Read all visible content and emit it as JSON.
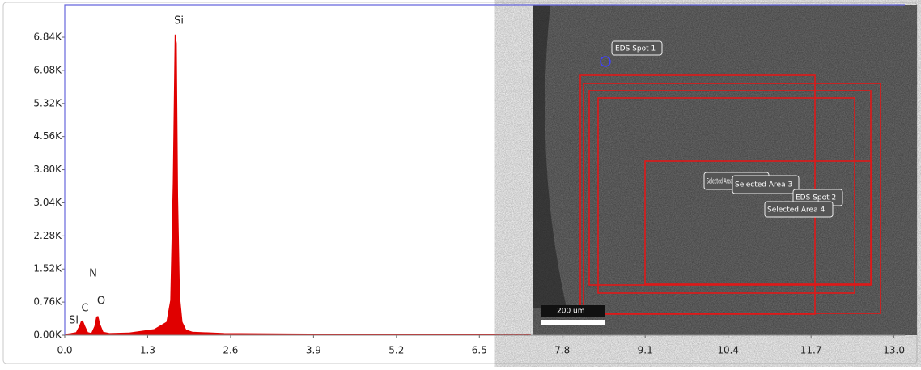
{
  "chart_data": {
    "type": "area",
    "color": "#e00000",
    "xlim": [
      0,
      13.17
    ],
    "ylim": [
      0,
      7584
    ],
    "xticks": [
      {
        "value": 0,
        "label": "0.0"
      },
      1.3,
      2.6,
      3.9,
      5.2,
      6.5,
      7.8,
      9.1,
      10.4,
      11.7,
      {
        "value": 13,
        "label": "13.0"
      }
    ],
    "yticks": [
      {
        "value": 0,
        "label": "0.00K"
      },
      {
        "value": 760,
        "label": "0.76K"
      },
      {
        "value": 1520,
        "label": "1.52K"
      },
      {
        "value": 2280,
        "label": "2.28K"
      },
      {
        "value": 3040,
        "label": "3.04K"
      },
      {
        "value": 3800,
        "label": "3.80K"
      },
      {
        "value": 4560,
        "label": "4.56K"
      },
      {
        "value": 5320,
        "label": "5.32K"
      },
      {
        "value": 6080,
        "label": "6.08K"
      },
      {
        "value": 6840,
        "label": "6.84K"
      }
    ],
    "x": [
      0.0,
      0.1,
      0.18,
      0.23,
      0.26,
      0.28,
      0.31,
      0.36,
      0.42,
      0.47,
      0.5,
      0.52,
      0.55,
      0.6,
      0.7,
      1.0,
      1.4,
      1.6,
      1.66,
      1.7,
      1.73,
      1.75,
      1.77,
      1.8,
      1.84,
      1.9,
      2.0,
      2.5,
      3.5,
      5.0,
      7.3
    ],
    "values": [
      20,
      40,
      60,
      200,
      320,
      330,
      220,
      60,
      40,
      200,
      420,
      430,
      250,
      70,
      40,
      50,
      130,
      300,
      800,
      3500,
      6900,
      6700,
      3200,
      900,
      300,
      120,
      70,
      40,
      30,
      25,
      20
    ],
    "annotations": [
      "Si",
      "Si",
      "C",
      "N",
      "O"
    ]
  },
  "image_overlay": {
    "labels": [
      "EDS Spot 1",
      "Selected Area",
      "Selected Area 3",
      "EDS Spot 2",
      "Selected Area 4"
    ],
    "scale_bar": "200 um"
  }
}
